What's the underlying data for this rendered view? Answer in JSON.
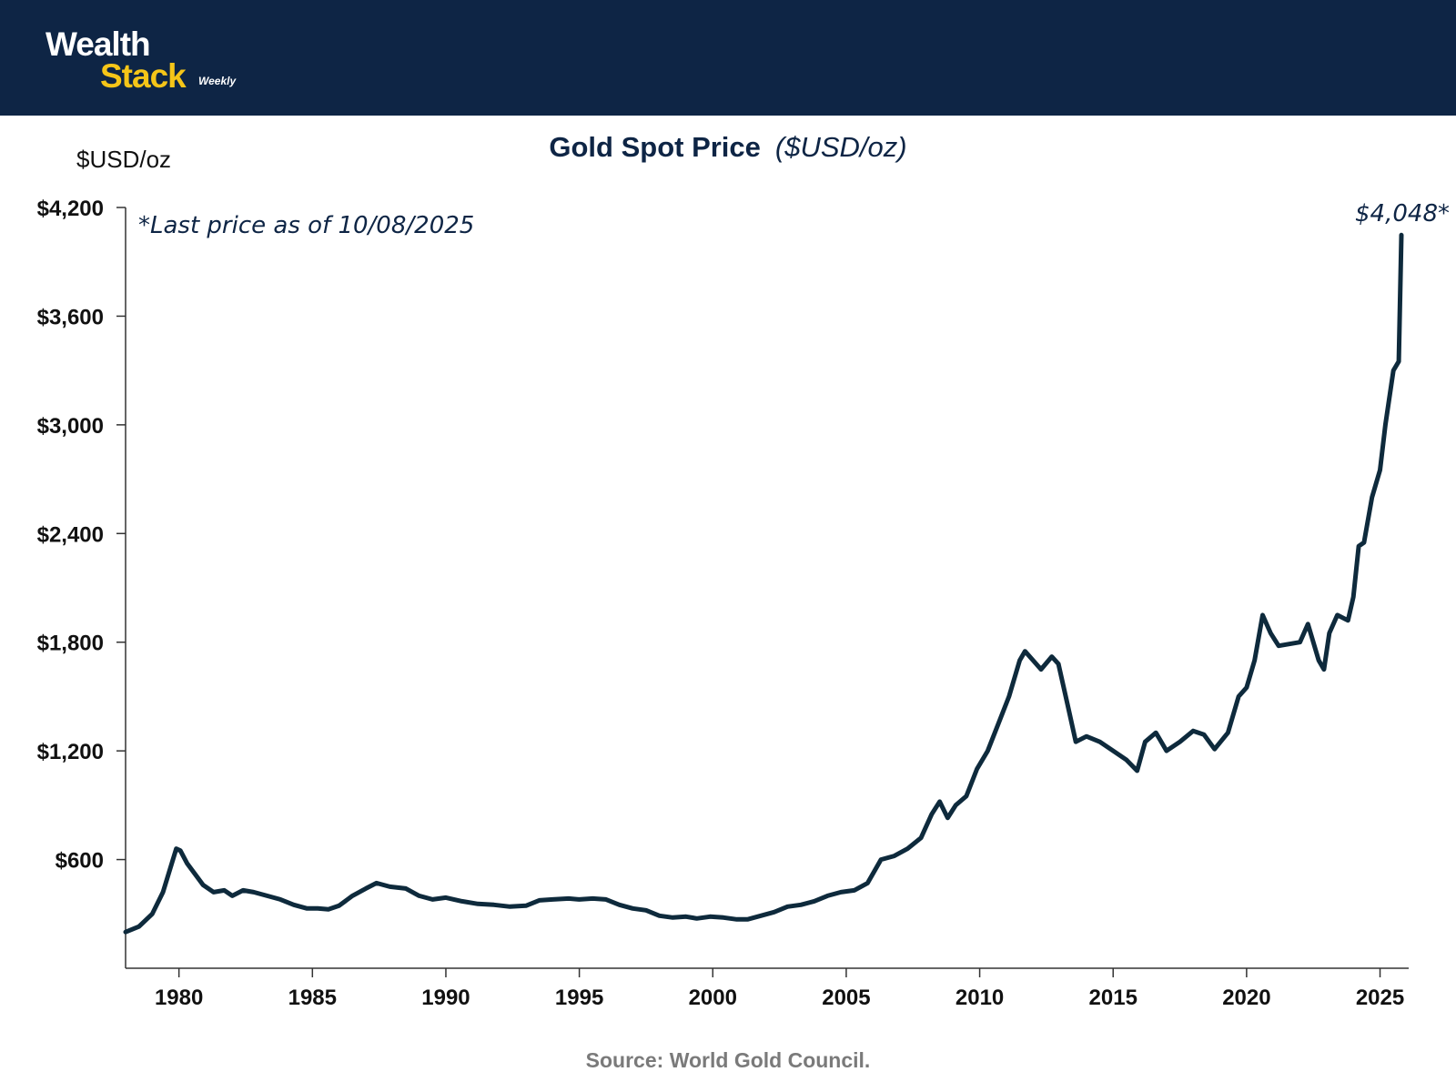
{
  "brand": {
    "name_line1": "Wealth",
    "name_line2": "Stack",
    "tagline": "Weekly",
    "colors": {
      "header_bg": "#0e2545",
      "accent": "#f5c518",
      "line": "#0e2a3c"
    }
  },
  "header": {
    "title": "Gold Spot Price",
    "subtitle": "($USD/oz)",
    "y_unit": "$USD/oz"
  },
  "annotations": {
    "note": "*Last price as of 10/08/2025",
    "last_value_label": "$4,048*"
  },
  "footer": {
    "source": "Source: World Gold Council."
  },
  "chart_data": {
    "type": "line",
    "title": "Gold Spot Price ($USD/oz)",
    "xlabel": "",
    "ylabel": "$USD/oz",
    "xlim": [
      1978,
      2025.8
    ],
    "ylim": [
      0,
      4200
    ],
    "y_ticks": [
      600,
      1200,
      1800,
      2400,
      3000,
      3600,
      4200
    ],
    "y_tick_labels": [
      "$600",
      "$1,200",
      "$1,800",
      "$2,400",
      "$3,000",
      "$3,600",
      "$4,200"
    ],
    "x_ticks": [
      1980,
      1985,
      1990,
      1995,
      2000,
      2005,
      2010,
      2015,
      2020,
      2025
    ],
    "x_tick_labels": [
      "1980",
      "1985",
      "1990",
      "1995",
      "2000",
      "2005",
      "2010",
      "2015",
      "2020",
      "2025"
    ],
    "grid": false,
    "series": [
      {
        "name": "Gold Spot Price",
        "x": [
          1978.0,
          1978.5,
          1979.0,
          1979.4,
          1979.9,
          1980.05,
          1980.3,
          1980.6,
          1980.9,
          1981.3,
          1981.7,
          1982.0,
          1982.4,
          1982.8,
          1983.3,
          1983.8,
          1984.3,
          1984.8,
          1985.2,
          1985.6,
          1986.0,
          1986.5,
          1987.0,
          1987.4,
          1987.9,
          1988.5,
          1989.0,
          1989.5,
          1990.0,
          1990.6,
          1991.2,
          1991.8,
          1992.4,
          1993.0,
          1993.5,
          1994.0,
          1994.6,
          1995.0,
          1995.5,
          1996.0,
          1996.5,
          1997.0,
          1997.5,
          1998.0,
          1998.5,
          1999.0,
          1999.4,
          1999.9,
          2000.4,
          2000.9,
          2001.3,
          2001.8,
          2002.3,
          2002.8,
          2003.3,
          2003.8,
          2004.3,
          2004.8,
          2005.3,
          2005.8,
          2006.3,
          2006.8,
          2007.3,
          2007.8,
          2008.2,
          2008.5,
          2008.8,
          2009.1,
          2009.5,
          2009.9,
          2010.3,
          2010.7,
          2011.1,
          2011.5,
          2011.7,
          2012.0,
          2012.3,
          2012.7,
          2012.95,
          2013.3,
          2013.6,
          2014.0,
          2014.5,
          2015.0,
          2015.5,
          2015.9,
          2016.2,
          2016.6,
          2017.0,
          2017.5,
          2018.0,
          2018.4,
          2018.8,
          2019.3,
          2019.7,
          2020.0,
          2020.3,
          2020.6,
          2020.9,
          2021.2,
          2021.6,
          2022.0,
          2022.3,
          2022.7,
          2022.9,
          2023.1,
          2023.4,
          2023.8,
          2024.0,
          2024.2,
          2024.4,
          2024.7,
          2025.0,
          2025.2,
          2025.5,
          2025.7,
          2025.8
        ],
        "values": [
          200,
          230,
          300,
          420,
          660,
          650,
          580,
          520,
          460,
          420,
          430,
          400,
          430,
          420,
          400,
          380,
          350,
          330,
          330,
          325,
          345,
          400,
          440,
          470,
          450,
          440,
          400,
          380,
          390,
          370,
          355,
          350,
          340,
          345,
          375,
          380,
          385,
          380,
          385,
          380,
          350,
          330,
          320,
          290,
          280,
          285,
          275,
          285,
          280,
          270,
          270,
          290,
          310,
          340,
          350,
          370,
          400,
          420,
          430,
          470,
          600,
          620,
          660,
          720,
          850,
          920,
          830,
          900,
          950,
          1100,
          1200,
          1350,
          1500,
          1700,
          1750,
          1700,
          1650,
          1720,
          1680,
          1450,
          1250,
          1280,
          1250,
          1200,
          1150,
          1090,
          1250,
          1300,
          1200,
          1250,
          1310,
          1290,
          1210,
          1300,
          1500,
          1550,
          1700,
          1950,
          1850,
          1780,
          1790,
          1800,
          1900,
          1700,
          1650,
          1850,
          1950,
          1920,
          2050,
          2330,
          2350,
          2600,
          2750,
          3000,
          3300,
          3350,
          4048
        ]
      }
    ]
  }
}
